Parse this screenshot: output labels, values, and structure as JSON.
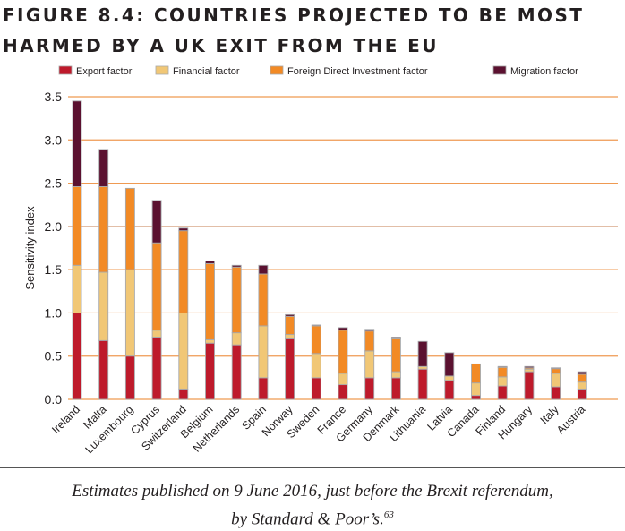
{
  "title_line1": "FIGURE 8.4: COUNTRIES PROJECTED TO BE MOST",
  "title_line2": "HARMED BY A UK EXIT FROM THE EU",
  "caption_line1": "Estimates published on 9 June 2016, just before the Brexit referendum,",
  "caption_line2": "by Standard & Poor’s.",
  "caption_footnote": "63",
  "chart_data": {
    "type": "bar",
    "stacked": true,
    "title": "Countries projected to be most harmed by a UK exit from the EU",
    "xlabel": "",
    "ylabel": "Sensitivity index",
    "ylim": [
      0,
      3.5
    ],
    "yticks": [
      "0.0",
      "0.5",
      "1.0",
      "1.5",
      "2.0",
      "2.5",
      "3.0",
      "3.5"
    ],
    "grid": true,
    "legend_placement": "top",
    "categories": [
      "Ireland",
      "Malta",
      "Luxembourg",
      "Cyprus",
      "Switzerland",
      "Belgium",
      "Netherlands",
      "Spain",
      "Norway",
      "Sweden",
      "France",
      "Germany",
      "Denmark",
      "Lithuania",
      "Latvia",
      "Canada",
      "Finland",
      "Hungary",
      "Italy",
      "Austria"
    ],
    "series": [
      {
        "name": "Export factor",
        "color": "#be1a2b",
        "values": [
          1.0,
          0.68,
          0.5,
          0.72,
          0.12,
          0.65,
          0.63,
          0.25,
          0.7,
          0.25,
          0.17,
          0.25,
          0.25,
          0.35,
          0.22,
          0.045,
          0.155,
          0.32,
          0.145,
          0.12
        ]
      },
      {
        "name": "Financial factor",
        "color": "#f1c776",
        "values": [
          0.55,
          0.79,
          1.0,
          0.08,
          0.88,
          0.04,
          0.14,
          0.6,
          0.05,
          0.28,
          0.13,
          0.31,
          0.07,
          0.03,
          0.05,
          0.145,
          0.105,
          0.03,
          0.155,
          0.08
        ]
      },
      {
        "name": "Foreign Direct Investment factor",
        "color": "#f28a25",
        "values": [
          0.91,
          0.99,
          0.94,
          1.01,
          0.95,
          0.88,
          0.76,
          0.6,
          0.21,
          0.32,
          0.5,
          0.23,
          0.38,
          0.0,
          0.0,
          0.22,
          0.11,
          0.015,
          0.055,
          0.09
        ]
      },
      {
        "name": "Migration factor",
        "color": "#5b1130",
        "values": [
          0.99,
          0.43,
          0.0,
          0.49,
          0.03,
          0.03,
          0.02,
          0.1,
          0.02,
          0.01,
          0.03,
          0.02,
          0.02,
          0.29,
          0.27,
          0.0,
          0.01,
          0.015,
          0.01,
          0.03
        ]
      }
    ]
  }
}
